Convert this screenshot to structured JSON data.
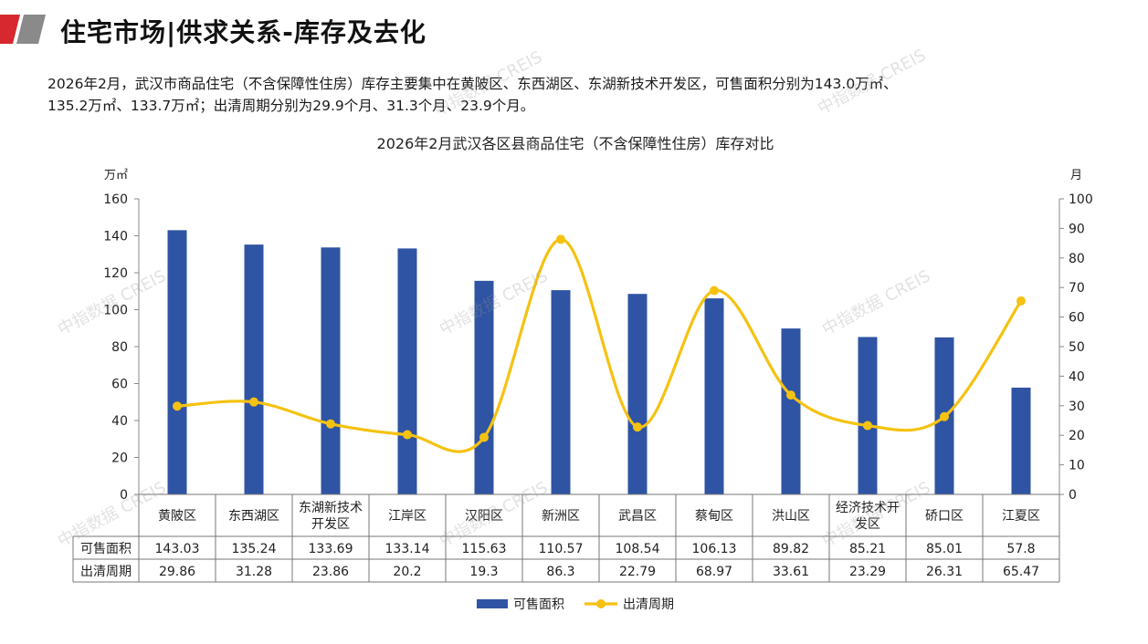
{
  "page": {
    "title": "住宅市场|供求关系-库存及去化",
    "summary_line1": "2026年2月，武汉市商品住宅（不含保障性住房）库存主要集中在黄陂区、东西湖区、东湖新技术开发区，可售面积分别为143.0万㎡、",
    "summary_line2": "135.2万㎡、133.7万㎡；出清周期分别为29.9个月、31.3个月、23.9个月。",
    "watermark": "中指数据 CREIS",
    "colors": {
      "bar": "#2F54A3",
      "line": "#F5C211",
      "logo_red": "#D7282F",
      "logo_gray": "#8A8A8A"
    }
  },
  "chart_data": {
    "type": "bar",
    "title": "2026年2月武汉各区县商品住宅（不含保障性住房）库存对比",
    "y_left_unit": "万㎡",
    "y_right_unit": "月",
    "y_left_range": [
      0,
      160
    ],
    "y_left_ticks": [
      0,
      20,
      40,
      60,
      80,
      100,
      120,
      140,
      160
    ],
    "y_right_range": [
      0,
      100
    ],
    "y_right_ticks": [
      0,
      10,
      20,
      30,
      40,
      50,
      60,
      70,
      80,
      90,
      100
    ],
    "categories": [
      "黄陂区",
      "东西湖区",
      "东湖新技术开发区",
      "江岸区",
      "汉阳区",
      "新洲区",
      "武昌区",
      "蔡甸区",
      "洪山区",
      "经济技术开发区",
      "硚口区",
      "江夏区"
    ],
    "category_lines": [
      [
        "黄陂区"
      ],
      [
        "东西湖区"
      ],
      [
        "东湖新技术",
        "开发区"
      ],
      [
        "江岸区"
      ],
      [
        "汉阳区"
      ],
      [
        "新洲区"
      ],
      [
        "武昌区"
      ],
      [
        "蔡甸区"
      ],
      [
        "洪山区"
      ],
      [
        "经济技术开",
        "发区"
      ],
      [
        "硚口区"
      ],
      [
        "江夏区"
      ]
    ],
    "series": [
      {
        "name": "可售面积",
        "type": "bar",
        "axis": "left",
        "color": "#2F54A3",
        "values": [
          143.03,
          135.24,
          133.69,
          133.14,
          115.63,
          110.57,
          108.54,
          106.13,
          89.82,
          85.21,
          85.01,
          57.8
        ],
        "labels": [
          "143.03",
          "135.24",
          "133.69",
          "133.14",
          "115.63",
          "110.57",
          "108.54",
          "106.13",
          "89.82",
          "85.21",
          "85.01",
          "57.8"
        ]
      },
      {
        "name": "出清周期",
        "type": "line",
        "axis": "right",
        "color": "#F5C211",
        "values": [
          29.86,
          31.28,
          23.86,
          20.2,
          19.3,
          86.3,
          22.79,
          68.97,
          33.61,
          23.29,
          26.31,
          65.47
        ],
        "labels": [
          "29.86",
          "31.28",
          "23.86",
          "20.2",
          "19.3",
          "86.3",
          "22.79",
          "68.97",
          "33.61",
          "23.29",
          "26.31",
          "65.47"
        ]
      }
    ],
    "legend": {
      "placement": "bottom-center"
    },
    "data_table": true,
    "grid": false
  }
}
